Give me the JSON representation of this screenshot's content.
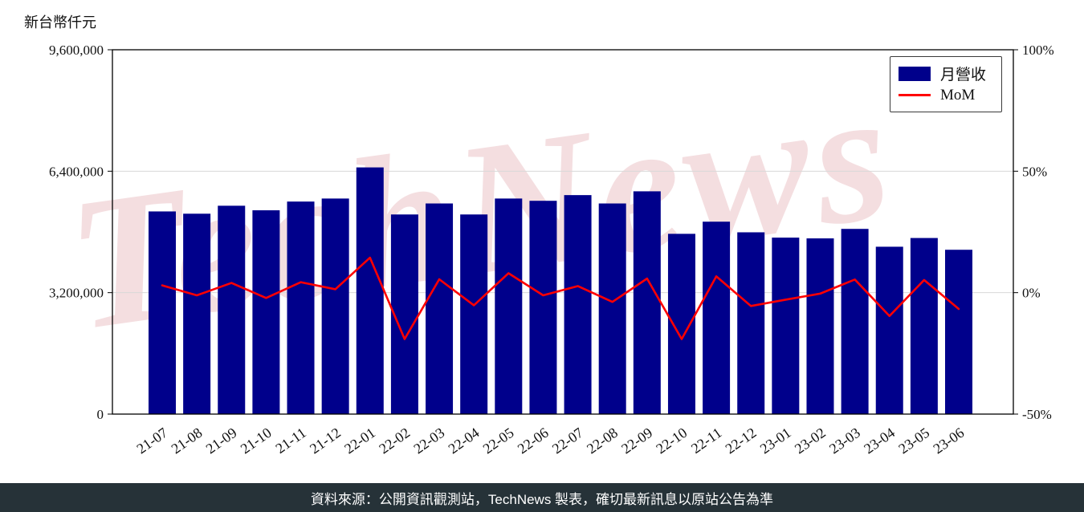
{
  "page": {
    "watermark": "TechNews",
    "footer": "資料來源：公開資訊觀測站，TechNews 製表，確切最新訊息以原站公告為準"
  },
  "chart": {
    "y_axis_title": "新台幣仟元"
  },
  "chart_data": {
    "type": "bar",
    "title": "",
    "categories": [
      "21-07",
      "21-08",
      "21-09",
      "21-10",
      "21-11",
      "21-12",
      "22-01",
      "22-02",
      "22-03",
      "22-04",
      "22-05",
      "22-06",
      "22-07",
      "22-08",
      "22-09",
      "22-10",
      "22-11",
      "22-12",
      "23-01",
      "23-02",
      "23-03",
      "23-04",
      "23-05",
      "23-06"
    ],
    "series": [
      {
        "name": "月營收",
        "type": "bar",
        "axis": "left",
        "color": "#00008b",
        "values": [
          5340000,
          5280000,
          5490000,
          5370000,
          5600000,
          5680000,
          6500000,
          5260000,
          5550000,
          5260000,
          5680000,
          5620000,
          5770000,
          5550000,
          5870000,
          4750000,
          5070000,
          4790000,
          4650000,
          4630000,
          4880000,
          4410000,
          4640000,
          4330000
        ]
      },
      {
        "name": "MoM",
        "type": "line",
        "axis": "right",
        "color": "#ff0000",
        "values_pct": [
          3.0,
          -1.1,
          4.0,
          -2.2,
          4.3,
          1.4,
          14.4,
          -19.1,
          5.5,
          -5.2,
          8.0,
          -1.1,
          2.7,
          -3.8,
          5.8,
          -19.1,
          6.7,
          -5.5,
          -2.9,
          -0.4,
          5.4,
          -9.6,
          5.2,
          -6.7
        ]
      }
    ],
    "left_axis": {
      "range": [
        0,
        9600000
      ],
      "ticks": [
        0,
        3200000,
        6400000,
        9600000
      ],
      "tick_labels": [
        "0",
        "3,200,000",
        "6,400,000",
        "9,600,000"
      ]
    },
    "right_axis": {
      "range": [
        -50,
        100
      ],
      "ticks": [
        -50,
        0,
        50,
        100
      ],
      "tick_labels": [
        "-50%",
        "0%",
        "50%",
        "100%"
      ]
    },
    "grid": true,
    "legend_position": "top-right"
  }
}
